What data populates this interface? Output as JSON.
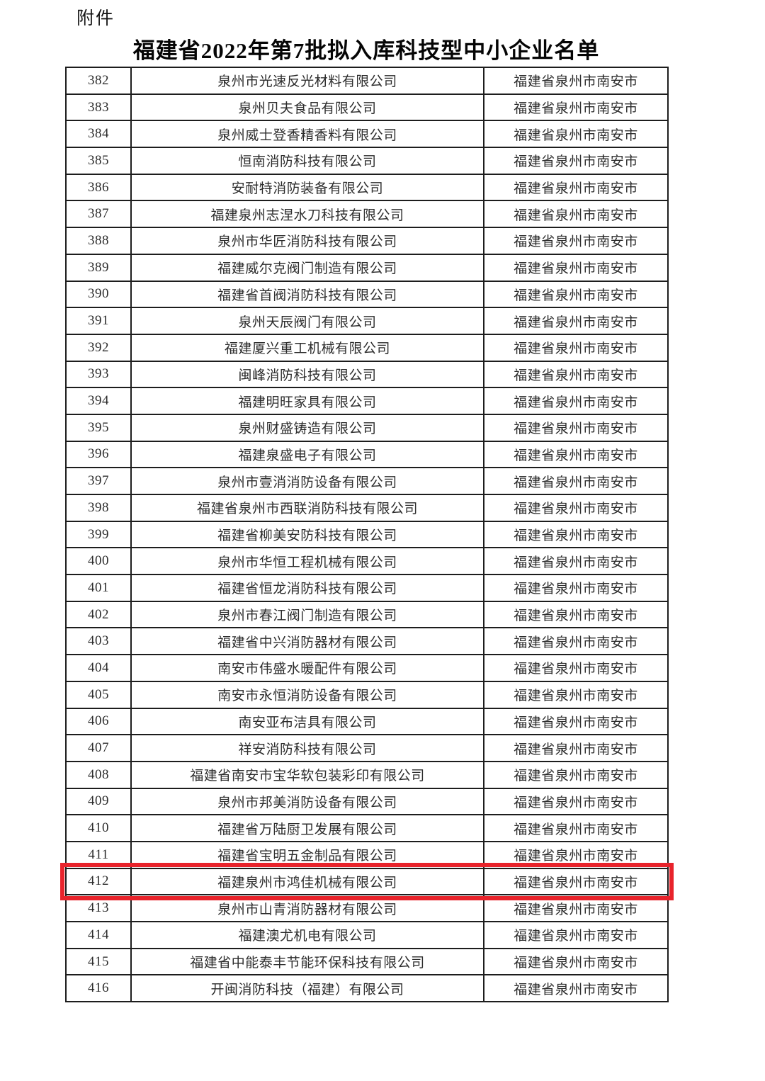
{
  "attachment_label": "附件",
  "title": "福建省2022年第7批拟入库科技型中小企业名单",
  "highlight": {
    "row_no": "412",
    "color": "#e8232b"
  },
  "table": {
    "border_color": "#1d1d1d",
    "rows": [
      {
        "no": "382",
        "company": "泉州市光速反光材料有限公司",
        "location": "福建省泉州市南安市"
      },
      {
        "no": "383",
        "company": "泉州贝夫食品有限公司",
        "location": "福建省泉州市南安市"
      },
      {
        "no": "384",
        "company": "泉州威士登香精香料有限公司",
        "location": "福建省泉州市南安市"
      },
      {
        "no": "385",
        "company": "恒南消防科技有限公司",
        "location": "福建省泉州市南安市"
      },
      {
        "no": "386",
        "company": "安耐特消防装备有限公司",
        "location": "福建省泉州市南安市"
      },
      {
        "no": "387",
        "company": "福建泉州志涅水刀科技有限公司",
        "location": "福建省泉州市南安市"
      },
      {
        "no": "388",
        "company": "泉州市华匠消防科技有限公司",
        "location": "福建省泉州市南安市"
      },
      {
        "no": "389",
        "company": "福建威尔克阀门制造有限公司",
        "location": "福建省泉州市南安市"
      },
      {
        "no": "390",
        "company": "福建省首阀消防科技有限公司",
        "location": "福建省泉州市南安市"
      },
      {
        "no": "391",
        "company": "泉州天辰阀门有限公司",
        "location": "福建省泉州市南安市"
      },
      {
        "no": "392",
        "company": "福建厦兴重工机械有限公司",
        "location": "福建省泉州市南安市"
      },
      {
        "no": "393",
        "company": "闽峰消防科技有限公司",
        "location": "福建省泉州市南安市"
      },
      {
        "no": "394",
        "company": "福建明旺家具有限公司",
        "location": "福建省泉州市南安市"
      },
      {
        "no": "395",
        "company": "泉州财盛铸造有限公司",
        "location": "福建省泉州市南安市"
      },
      {
        "no": "396",
        "company": "福建泉盛电子有限公司",
        "location": "福建省泉州市南安市"
      },
      {
        "no": "397",
        "company": "泉州市壹消消防设备有限公司",
        "location": "福建省泉州市南安市"
      },
      {
        "no": "398",
        "company": "福建省泉州市西联消防科技有限公司",
        "location": "福建省泉州市南安市"
      },
      {
        "no": "399",
        "company": "福建省柳美安防科技有限公司",
        "location": "福建省泉州市南安市"
      },
      {
        "no": "400",
        "company": "泉州市华恒工程机械有限公司",
        "location": "福建省泉州市南安市"
      },
      {
        "no": "401",
        "company": "福建省恒龙消防科技有限公司",
        "location": "福建省泉州市南安市"
      },
      {
        "no": "402",
        "company": "泉州市春江阀门制造有限公司",
        "location": "福建省泉州市南安市"
      },
      {
        "no": "403",
        "company": "福建省中兴消防器材有限公司",
        "location": "福建省泉州市南安市"
      },
      {
        "no": "404",
        "company": "南安市伟盛水暖配件有限公司",
        "location": "福建省泉州市南安市"
      },
      {
        "no": "405",
        "company": "南安市永恒消防设备有限公司",
        "location": "福建省泉州市南安市"
      },
      {
        "no": "406",
        "company": "南安亚布洁具有限公司",
        "location": "福建省泉州市南安市"
      },
      {
        "no": "407",
        "company": "祥安消防科技有限公司",
        "location": "福建省泉州市南安市"
      },
      {
        "no": "408",
        "company": "福建省南安市宝华软包装彩印有限公司",
        "location": "福建省泉州市南安市"
      },
      {
        "no": "409",
        "company": "泉州市邦美消防设备有限公司",
        "location": "福建省泉州市南安市"
      },
      {
        "no": "410",
        "company": "福建省万陆厨卫发展有限公司",
        "location": "福建省泉州市南安市"
      },
      {
        "no": "411",
        "company": "福建省宝明五金制品有限公司",
        "location": "福建省泉州市南安市"
      },
      {
        "no": "412",
        "company": "福建泉州市鸿佳机械有限公司",
        "location": "福建省泉州市南安市"
      },
      {
        "no": "413",
        "company": "泉州市山青消防器材有限公司",
        "location": "福建省泉州市南安市"
      },
      {
        "no": "414",
        "company": "福建澳尤机电有限公司",
        "location": "福建省泉州市南安市"
      },
      {
        "no": "415",
        "company": "福建省中能泰丰节能环保科技有限公司",
        "location": "福建省泉州市南安市"
      },
      {
        "no": "416",
        "company": "开闽消防科技（福建）有限公司",
        "location": "福建省泉州市南安市"
      }
    ]
  }
}
